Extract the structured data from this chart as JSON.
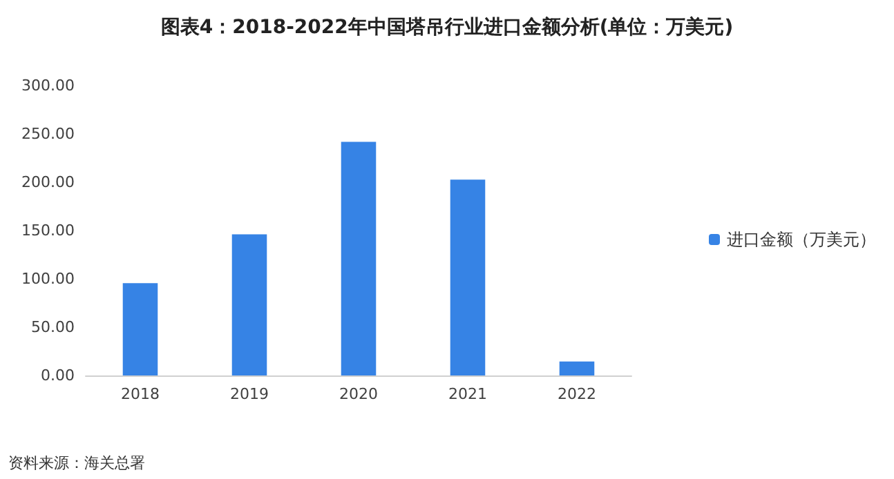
{
  "chart_data": {
    "type": "bar",
    "title": "图表4：2018-2022年中国塔吊行业进口金额分析(单位：万美元)",
    "categories": [
      "2018",
      "2019",
      "2020",
      "2021",
      "2022"
    ],
    "series": [
      {
        "name": "进口金额（万美元）",
        "color": "#3683e5",
        "values": [
          95.5,
          146,
          241.7,
          202.6,
          14.5
        ]
      }
    ],
    "ylim": [
      0,
      300
    ],
    "yticks": [
      {
        "value": 0,
        "label": "0.00"
      },
      {
        "value": 50,
        "label": "50.00"
      },
      {
        "value": 100,
        "label": "100.00"
      },
      {
        "value": 150,
        "label": "150.00"
      },
      {
        "value": 200,
        "label": "200.00"
      },
      {
        "value": 250,
        "label": "250.00"
      },
      {
        "value": 300,
        "label": "300.00"
      }
    ],
    "legend": "right",
    "annotations": [
      "资料来源：海关总署"
    ]
  }
}
